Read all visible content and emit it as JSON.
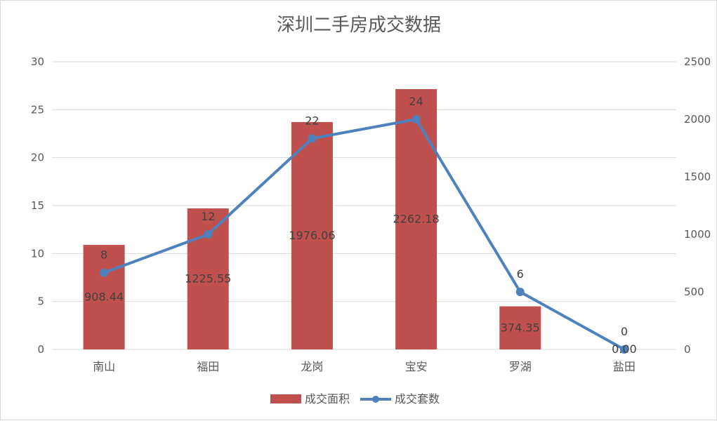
{
  "chart_data": {
    "type": "bar",
    "title": "深圳二手房成交数据",
    "categories": [
      "南山",
      "福田",
      "龙岗",
      "宝安",
      "罗湖",
      "盐田"
    ],
    "series": [
      {
        "name": "成交面积",
        "type": "bar",
        "axis": "right",
        "color": "#c0504d",
        "values": [
          908.44,
          1225.55,
          1976.06,
          2262.18,
          374.35,
          0.0
        ],
        "labels": [
          "908.44",
          "1225.55",
          "1976.06",
          "2262.18",
          "374.35",
          "0.00"
        ]
      },
      {
        "name": "成交套数",
        "type": "line",
        "axis": "left",
        "color": "#4f81bd",
        "values": [
          8,
          12,
          22,
          24,
          6,
          0
        ],
        "labels": [
          "8",
          "12",
          "22",
          "24",
          "6",
          "0"
        ]
      }
    ],
    "left_axis": {
      "min": 0,
      "max": 30,
      "ticks": [
        "0",
        "5",
        "10",
        "15",
        "20",
        "25",
        "30"
      ]
    },
    "right_axis": {
      "min": 0,
      "max": 2500,
      "ticks": [
        "0",
        "500",
        "1000",
        "1500",
        "2000",
        "2500"
      ]
    },
    "grid": true,
    "legend_position": "bottom"
  }
}
